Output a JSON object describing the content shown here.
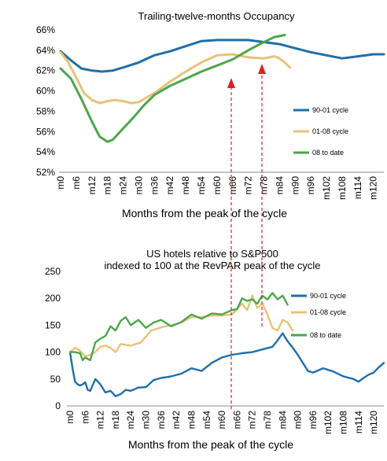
{
  "chart_data": [
    {
      "type": "line",
      "title": "Trailing-twelve-months Occupancy",
      "xlabel": "Months from the peak of the cycle",
      "ylabel": "",
      "ylim": [
        52,
        66
      ],
      "y_ticks": [
        "52%",
        "54%",
        "56%",
        "58%",
        "60%",
        "62%",
        "64%",
        "66%"
      ],
      "x_ticks": [
        "m0",
        "m6",
        "m12",
        "m18",
        "m24",
        "m30",
        "m36",
        "m42",
        "m48",
        "m54",
        "m60",
        "m66",
        "m72",
        "m78",
        "m84",
        "m90",
        "m96",
        "m102",
        "m108",
        "m114",
        "m120"
      ],
      "xlim": [
        0,
        124
      ],
      "grid": false,
      "legend_position": "right",
      "series": [
        {
          "name": "90-01 cycle",
          "color": "#1f6fa8",
          "x": [
            0,
            4,
            8,
            12,
            16,
            20,
            24,
            30,
            36,
            42,
            48,
            54,
            60,
            66,
            72,
            78,
            84,
            90,
            96,
            102,
            108,
            114,
            120,
            124
          ],
          "y": [
            63.9,
            63.0,
            62.2,
            62.0,
            61.9,
            62.0,
            62.3,
            62.8,
            63.5,
            63.9,
            64.4,
            64.9,
            65.0,
            65.0,
            65.0,
            64.8,
            64.6,
            64.2,
            63.8,
            63.5,
            63.2,
            63.4,
            63.6,
            63.6
          ]
        },
        {
          "name": "01-08 cycle",
          "color": "#e8c27a",
          "x": [
            0,
            3,
            6,
            9,
            12,
            15,
            18,
            21,
            24,
            27,
            30,
            36,
            42,
            48,
            54,
            60,
            66,
            72,
            78,
            82,
            84,
            86,
            88
          ],
          "y": [
            63.8,
            62.8,
            61.3,
            59.8,
            59.1,
            58.8,
            59.0,
            59.1,
            59.0,
            58.8,
            58.9,
            59.8,
            60.9,
            61.9,
            62.8,
            63.5,
            63.6,
            63.3,
            63.2,
            63.4,
            63.2,
            62.8,
            62.3
          ]
        },
        {
          "name": "08 to date",
          "color": "#4da64d",
          "x": [
            0,
            4,
            8,
            12,
            15,
            18,
            20,
            24,
            28,
            32,
            36,
            42,
            48,
            54,
            60,
            66,
            72,
            78,
            82,
            86
          ],
          "y": [
            62.2,
            61.2,
            59.2,
            57.0,
            55.5,
            55.0,
            55.2,
            56.3,
            57.4,
            58.6,
            59.6,
            60.5,
            61.2,
            61.9,
            62.5,
            63.1,
            64.0,
            64.8,
            65.3,
            65.5
          ]
        }
      ]
    },
    {
      "type": "line",
      "title": "US hotels relative to S&P500",
      "subtitle": "indexed to 100 at the RevPAR peak of the cycle",
      "xlabel": "Months from the peak of the cycle",
      "ylabel": "",
      "ylim": [
        0,
        250
      ],
      "y_ticks": [
        "0",
        "50",
        "100",
        "150",
        "200",
        "250"
      ],
      "x_ticks": [
        "m0",
        "m6",
        "m12",
        "m18",
        "m24",
        "m30",
        "m36",
        "m42",
        "m48",
        "m54",
        "m60",
        "m66",
        "m72",
        "m78",
        "m84",
        "m90",
        "m96",
        "m102",
        "m108",
        "m114",
        "m120"
      ],
      "xlim": [
        0,
        124
      ],
      "grid": false,
      "legend_position": "right",
      "series": [
        {
          "name": "90-01 cycle",
          "color": "#1f6fa8",
          "x": [
            0,
            1,
            2,
            3,
            4,
            5,
            6,
            7,
            8,
            10,
            12,
            14,
            16,
            18,
            20,
            22,
            24,
            27,
            30,
            33,
            36,
            40,
            44,
            48,
            52,
            56,
            60,
            64,
            68,
            72,
            76,
            80,
            82,
            84,
            86,
            88,
            90,
            92,
            94,
            96,
            100,
            104,
            108,
            112,
            114,
            116,
            118,
            120,
            122,
            124
          ],
          "y": [
            100,
            70,
            45,
            40,
            38,
            40,
            44,
            30,
            28,
            50,
            40,
            25,
            28,
            18,
            22,
            30,
            28,
            34,
            35,
            48,
            52,
            55,
            60,
            70,
            65,
            80,
            90,
            95,
            98,
            100,
            105,
            110,
            122,
            135,
            120,
            108,
            95,
            80,
            65,
            62,
            70,
            64,
            55,
            50,
            45,
            52,
            58,
            62,
            72,
            80
          ]
        },
        {
          "name": "01-08 cycle",
          "color": "#e8c27a",
          "x": [
            0,
            2,
            4,
            6,
            8,
            10,
            12,
            14,
            16,
            18,
            20,
            24,
            28,
            32,
            36,
            40,
            44,
            48,
            52,
            56,
            60,
            64,
            68,
            70,
            72,
            74,
            76,
            78,
            80,
            82,
            84,
            86,
            88
          ],
          "y": [
            100,
            108,
            102,
            92,
            95,
            100,
            110,
            112,
            108,
            100,
            115,
            112,
            118,
            140,
            146,
            150,
            155,
            165,
            165,
            168,
            168,
            170,
            190,
            178,
            205,
            182,
            190,
            170,
            145,
            140,
            160,
            155,
            140
          ]
        },
        {
          "name": "08 to date",
          "color": "#4da64d",
          "x": [
            0,
            2,
            4,
            5,
            6,
            8,
            10,
            12,
            14,
            16,
            18,
            20,
            22,
            24,
            27,
            30,
            33,
            36,
            40,
            44,
            48,
            52,
            56,
            60,
            64,
            66,
            68,
            70,
            72,
            74,
            76,
            78,
            80,
            82,
            84,
            86
          ],
          "y": [
            100,
            100,
            98,
            85,
            90,
            85,
            118,
            125,
            130,
            148,
            140,
            158,
            165,
            150,
            160,
            145,
            155,
            160,
            148,
            156,
            170,
            162,
            172,
            170,
            178,
            180,
            200,
            195,
            198,
            190,
            205,
            198,
            210,
            198,
            205,
            188
          ]
        }
      ]
    }
  ]
}
